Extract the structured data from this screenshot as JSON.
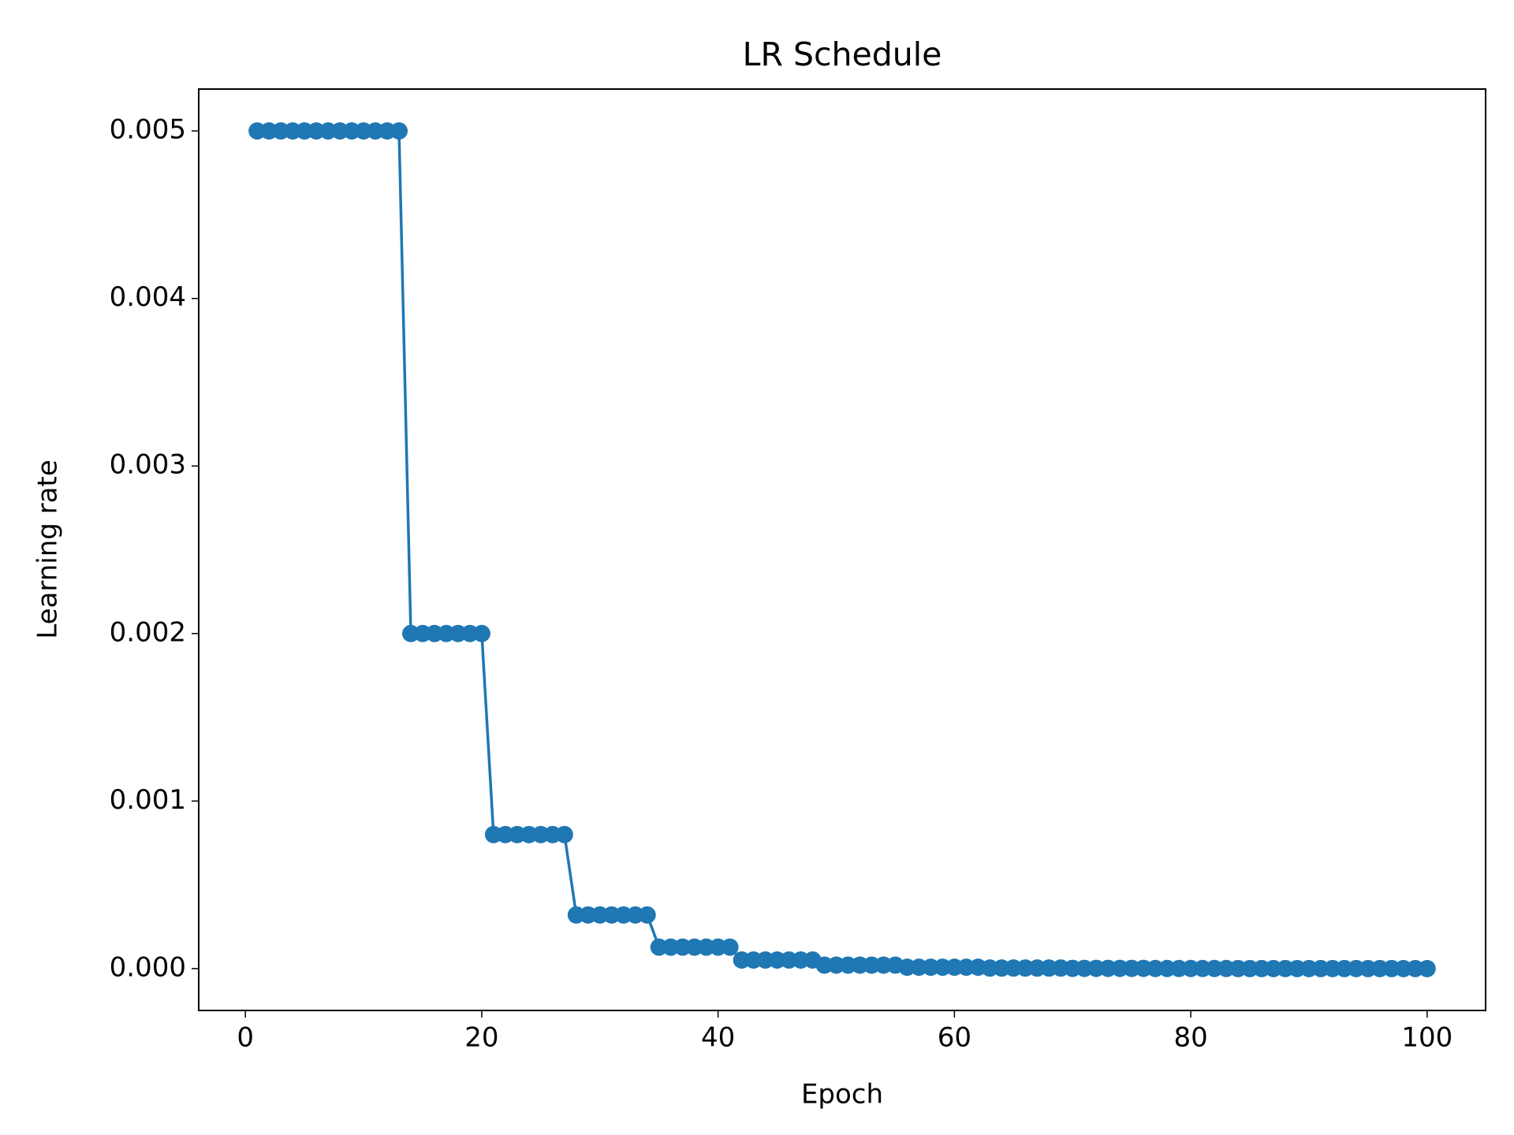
{
  "chart_data": {
    "type": "line",
    "title": "LR Schedule",
    "xlabel": "Epoch",
    "ylabel": "Learning rate",
    "x": [
      1,
      2,
      3,
      4,
      5,
      6,
      7,
      8,
      9,
      10,
      11,
      12,
      13,
      14,
      15,
      16,
      17,
      18,
      19,
      20,
      21,
      22,
      23,
      24,
      25,
      26,
      27,
      28,
      29,
      30,
      31,
      32,
      33,
      34,
      35,
      36,
      37,
      38,
      39,
      40,
      41,
      42,
      43,
      44,
      45,
      46,
      47,
      48,
      49,
      50,
      51,
      52,
      53,
      54,
      55,
      56,
      57,
      58,
      59,
      60,
      61,
      62,
      63,
      64,
      65,
      66,
      67,
      68,
      69,
      70,
      71,
      72,
      73,
      74,
      75,
      76,
      77,
      78,
      79,
      80,
      81,
      82,
      83,
      84,
      85,
      86,
      87,
      88,
      89,
      90,
      91,
      92,
      93,
      94,
      95,
      96,
      97,
      98,
      99,
      100
    ],
    "values": [
      0.005,
      0.005,
      0.005,
      0.005,
      0.005,
      0.005,
      0.005,
      0.005,
      0.005,
      0.005,
      0.005,
      0.005,
      0.005,
      0.002,
      0.002,
      0.002,
      0.002,
      0.002,
      0.002,
      0.002,
      0.0008,
      0.0008,
      0.0008,
      0.0008,
      0.0008,
      0.0008,
      0.0008,
      0.00032,
      0.00032,
      0.00032,
      0.00032,
      0.00032,
      0.00032,
      0.00032,
      0.000128,
      0.000128,
      0.000128,
      0.000128,
      0.000128,
      0.000128,
      0.000128,
      5.12e-05,
      5.12e-05,
      5.12e-05,
      5.12e-05,
      5.12e-05,
      5.12e-05,
      5.12e-05,
      2.048e-05,
      2.048e-05,
      2.048e-05,
      2.048e-05,
      2.048e-05,
      2.048e-05,
      2.048e-05,
      8.192e-06,
      8.192e-06,
      8.192e-06,
      8.192e-06,
      8.192e-06,
      8.192e-06,
      8.192e-06,
      3.2768e-06,
      3.2768e-06,
      3.2768e-06,
      3.2768e-06,
      3.2768e-06,
      3.2768e-06,
      3.2768e-06,
      1.31072e-06,
      1.31072e-06,
      1.31072e-06,
      1.31072e-06,
      1.31072e-06,
      1.31072e-06,
      1.31072e-06,
      5.24288e-07,
      5.24288e-07,
      5.24288e-07,
      5.24288e-07,
      5.24288e-07,
      5.24288e-07,
      5.24288e-07,
      2.097152e-07,
      2.097152e-07,
      2.097152e-07,
      2.097152e-07,
      2.097152e-07,
      2.097152e-07,
      2.097152e-07,
      8.388608e-08,
      8.388608e-08,
      8.388608e-08,
      8.388608e-08,
      8.388608e-08,
      8.388608e-08,
      8.388608e-08,
      3.3554432e-08,
      3.3554432e-08,
      3.3554432e-08
    ],
    "color": "#1f77b4",
    "xlim": [
      -3.95,
      104.95
    ],
    "xticks": [
      0,
      20,
      40,
      60,
      80,
      100
    ],
    "ylim": [
      -0.00025,
      0.00525
    ],
    "yticks": [
      {
        "value": 0,
        "label": "0.000"
      },
      {
        "value": 0.001,
        "label": "0.001"
      },
      {
        "value": 0.002,
        "label": "0.002"
      },
      {
        "value": 0.003,
        "label": "0.003"
      },
      {
        "value": 0.004,
        "label": "0.004"
      },
      {
        "value": 0.005,
        "label": "0.005"
      }
    ],
    "grid": false
  }
}
